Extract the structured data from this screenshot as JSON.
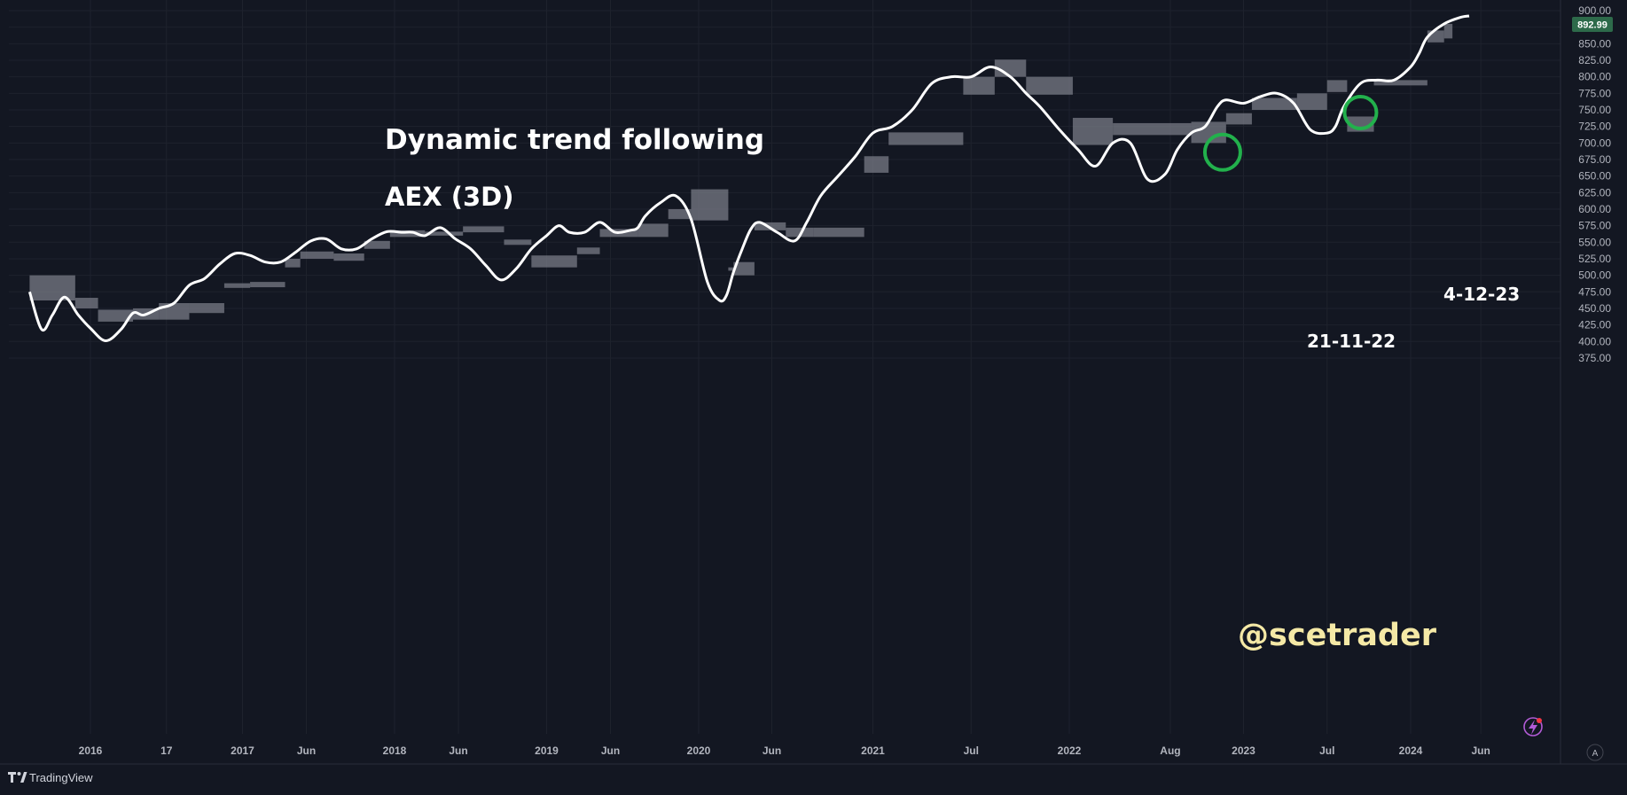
{
  "chart_data": {
    "type": "line",
    "title": "Dynamic trend following",
    "subtitle": "AEX (3D)",
    "xlabel": "",
    "ylabel": "",
    "ylim": [
      362,
      900
    ],
    "grid": true,
    "y_ticks": [
      "900.00",
      "875.00",
      "850.00",
      "825.00",
      "800.00",
      "775.00",
      "750.00",
      "725.00",
      "700.00",
      "675.00",
      "650.00",
      "625.00",
      "600.00",
      "575.00",
      "550.00",
      "525.00",
      "500.00",
      "475.00",
      "450.00",
      "425.00",
      "400.00",
      "375.00"
    ],
    "x_ticks": [
      {
        "label": "2016",
        "t": 2016.0
      },
      {
        "label": "17",
        "t": 2016.5
      },
      {
        "label": "2017",
        "t": 2017.0
      },
      {
        "label": "Jun",
        "t": 2017.42
      },
      {
        "label": "2018",
        "t": 2018.0
      },
      {
        "label": "Jun",
        "t": 2018.42
      },
      {
        "label": "2019",
        "t": 2019.0
      },
      {
        "label": "Jun",
        "t": 2019.42
      },
      {
        "label": "2020",
        "t": 2020.0
      },
      {
        "label": "Jun",
        "t": 2020.42
      },
      {
        "label": "2021",
        "t": 2021.0
      },
      {
        "label": "Jul",
        "t": 2021.5
      },
      {
        "label": "2022",
        "t": 2022.0
      },
      {
        "label": "Aug",
        "t": 2022.58
      },
      {
        "label": "2023",
        "t": 2023.0
      },
      {
        "label": "Jul",
        "t": 2023.5
      },
      {
        "label": "2024",
        "t": 2024.0
      },
      {
        "label": "Jun",
        "t": 2024.42
      }
    ],
    "last_price": "892.99",
    "series": [
      {
        "color": "#ffffff",
        "x": [
          2015.6,
          2015.68,
          2015.75,
          2015.83,
          2015.92,
          2016.0,
          2016.1,
          2016.2,
          2016.28,
          2016.35,
          2016.45,
          2016.55,
          2016.65,
          2016.75,
          2016.85,
          2016.95,
          2017.05,
          2017.15,
          2017.25,
          2017.35,
          2017.45,
          2017.55,
          2017.65,
          2017.75,
          2017.85,
          2017.95,
          2018.05,
          2018.12,
          2018.2,
          2018.3,
          2018.4,
          2018.5,
          2018.6,
          2018.7,
          2018.8,
          2018.9,
          2019.0,
          2019.08,
          2019.15,
          2019.25,
          2019.35,
          2019.45,
          2019.55,
          2019.6,
          2019.65,
          2019.75,
          2019.85,
          2019.95,
          2020.05,
          2020.12,
          2020.16,
          2020.2,
          2020.25,
          2020.3,
          2020.35,
          2020.45,
          2020.55,
          2020.62,
          2020.7,
          2020.8,
          2020.9,
          2021.0,
          2021.1,
          2021.2,
          2021.3,
          2021.4,
          2021.5,
          2021.6,
          2021.7,
          2021.78,
          2021.85,
          2021.95,
          2022.05,
          2022.15,
          2022.25,
          2022.35,
          2022.45,
          2022.55,
          2022.62,
          2022.7,
          2022.78,
          2022.85,
          2022.9,
          2023.0,
          2023.1,
          2023.2,
          2023.3,
          2023.4,
          2023.5,
          2023.55,
          2023.6,
          2023.7,
          2023.8,
          2023.9,
          2024.0,
          2024.05,
          2024.1,
          2024.2,
          2024.3,
          2024.35
        ],
        "values": [
          475,
          418,
          440,
          467,
          440,
          420,
          401,
          418,
          443,
          440,
          450,
          458,
          485,
          495,
          517,
          533,
          530,
          520,
          520,
          535,
          552,
          555,
          540,
          540,
          555,
          566,
          565,
          565,
          560,
          572,
          555,
          540,
          515,
          493,
          510,
          540,
          560,
          575,
          565,
          565,
          580,
          565,
          568,
          572,
          590,
          610,
          620,
          585,
          490,
          462,
          470,
          505,
          540,
          570,
          580,
          565,
          552,
          580,
          620,
          650,
          680,
          715,
          725,
          750,
          790,
          800,
          800,
          815,
          800,
          775,
          755,
          720,
          690,
          665,
          700,
          700,
          645,
          653,
          690,
          715,
          725,
          755,
          765,
          760,
          770,
          775,
          760,
          720,
          715,
          725,
          755,
          790,
          795,
          795,
          815,
          835,
          860,
          880,
          890,
          892
        ]
      }
    ],
    "band_color": "#787b86",
    "band_segments": [
      {
        "x0": 2015.6,
        "x1": 2015.9,
        "y0": 462,
        "y1": 500
      },
      {
        "x0": 2015.9,
        "x1": 2016.05,
        "y0": 450,
        "y1": 466
      },
      {
        "x0": 2016.05,
        "x1": 2016.28,
        "y0": 430,
        "y1": 448
      },
      {
        "x0": 2016.28,
        "x1": 2016.45,
        "y0": 433,
        "y1": 450
      },
      {
        "x0": 2016.45,
        "x1": 2016.65,
        "y0": 433,
        "y1": 458
      },
      {
        "x0": 2016.65,
        "x1": 2016.88,
        "y0": 443,
        "y1": 458
      },
      {
        "x0": 2016.88,
        "x1": 2017.05,
        "y0": 481,
        "y1": 488
      },
      {
        "x0": 2017.05,
        "x1": 2017.28,
        "y0": 482,
        "y1": 490
      },
      {
        "x0": 2017.28,
        "x1": 2017.38,
        "y0": 512,
        "y1": 525
      },
      {
        "x0": 2017.38,
        "x1": 2017.6,
        "y0": 525,
        "y1": 536
      },
      {
        "x0": 2017.6,
        "x1": 2017.8,
        "y0": 522,
        "y1": 533
      },
      {
        "x0": 2017.8,
        "x1": 2017.97,
        "y0": 540,
        "y1": 552
      },
      {
        "x0": 2017.97,
        "x1": 2018.2,
        "y0": 558,
        "y1": 568
      },
      {
        "x0": 2018.2,
        "x1": 2018.45,
        "y0": 560,
        "y1": 566
      },
      {
        "x0": 2018.45,
        "x1": 2018.72,
        "y0": 565,
        "y1": 574
      },
      {
        "x0": 2018.72,
        "x1": 2018.9,
        "y0": 546,
        "y1": 554
      },
      {
        "x0": 2018.9,
        "x1": 2019.2,
        "y0": 512,
        "y1": 530
      },
      {
        "x0": 2019.2,
        "x1": 2019.35,
        "y0": 532,
        "y1": 542
      },
      {
        "x0": 2019.35,
        "x1": 2019.6,
        "y0": 558,
        "y1": 570
      },
      {
        "x0": 2019.6,
        "x1": 2019.8,
        "y0": 558,
        "y1": 578
      },
      {
        "x0": 2019.8,
        "x1": 2019.95,
        "y0": 585,
        "y1": 600
      },
      {
        "x0": 2019.95,
        "x1": 2020.17,
        "y0": 583,
        "y1": 630
      },
      {
        "x0": 2020.17,
        "x1": 2020.2,
        "y0": 507,
        "y1": 512
      },
      {
        "x0": 2020.2,
        "x1": 2020.32,
        "y0": 500,
        "y1": 520
      },
      {
        "x0": 2020.32,
        "x1": 2020.5,
        "y0": 568,
        "y1": 580
      },
      {
        "x0": 2020.5,
        "x1": 2020.66,
        "y0": 558,
        "y1": 572
      },
      {
        "x0": 2020.66,
        "x1": 2020.95,
        "y0": 558,
        "y1": 572
      },
      {
        "x0": 2020.95,
        "x1": 2021.08,
        "y0": 655,
        "y1": 680
      },
      {
        "x0": 2021.08,
        "x1": 2021.46,
        "y0": 697,
        "y1": 716
      },
      {
        "x0": 2021.46,
        "x1": 2021.62,
        "y0": 773,
        "y1": 800
      },
      {
        "x0": 2021.62,
        "x1": 2021.78,
        "y0": 800,
        "y1": 826
      },
      {
        "x0": 2021.78,
        "x1": 2022.02,
        "y0": 773,
        "y1": 800
      },
      {
        "x0": 2022.02,
        "x1": 2022.25,
        "y0": 697,
        "y1": 738
      },
      {
        "x0": 2022.25,
        "x1": 2022.7,
        "y0": 712,
        "y1": 730
      },
      {
        "x0": 2022.7,
        "x1": 2022.9,
        "y0": 700,
        "y1": 732
      },
      {
        "x0": 2022.9,
        "x1": 2023.05,
        "y0": 728,
        "y1": 745
      },
      {
        "x0": 2023.05,
        "x1": 2023.32,
        "y0": 750,
        "y1": 768
      },
      {
        "x0": 2023.32,
        "x1": 2023.5,
        "y0": 750,
        "y1": 775
      },
      {
        "x0": 2023.5,
        "x1": 2023.62,
        "y0": 777,
        "y1": 795
      },
      {
        "x0": 2023.62,
        "x1": 2023.78,
        "y0": 717,
        "y1": 740
      },
      {
        "x0": 2023.78,
        "x1": 2024.1,
        "y0": 787,
        "y1": 795
      },
      {
        "x0": 2024.1,
        "x1": 2024.2,
        "y0": 852,
        "y1": 870
      },
      {
        "x0": 2024.2,
        "x1": 2024.25,
        "y0": 858,
        "y1": 880
      }
    ],
    "highlights": [
      {
        "t": 2022.88,
        "v": 686,
        "label": "21-11-22"
      },
      {
        "t": 2023.7,
        "v": 746,
        "label": "4-12-23"
      }
    ],
    "annotation_labels": [
      "21-11-22",
      "4-12-23"
    ],
    "watermark": "@scetrader"
  },
  "footer": {
    "brand": "TradingView",
    "auto_label": "A"
  }
}
